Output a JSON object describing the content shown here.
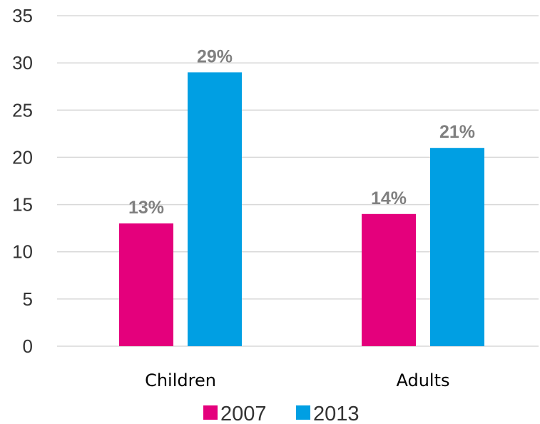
{
  "chart_data": {
    "type": "bar",
    "categories": [
      "Children",
      "Adults"
    ],
    "series": [
      {
        "name": "2007",
        "values": [
          13,
          14
        ],
        "color": "#E4007C",
        "labels": [
          "13%",
          "14%"
        ]
      },
      {
        "name": "2013",
        "values": [
          29,
          21
        ],
        "color": "#009FE3",
        "labels": [
          "29%",
          "21%"
        ]
      }
    ],
    "ylim": [
      0,
      35
    ],
    "yticks": [
      "0",
      "5",
      "10",
      "15",
      "20",
      "25",
      "30",
      "35"
    ],
    "grid": true,
    "legend": "bottom"
  }
}
